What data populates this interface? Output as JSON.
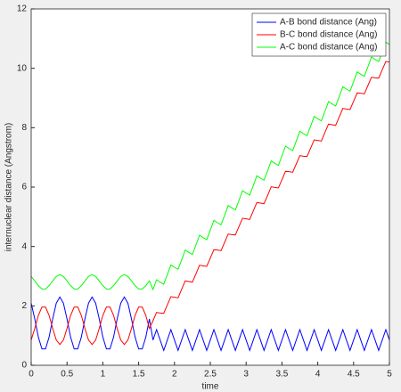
{
  "chart_data": {
    "type": "line",
    "xlabel": "time",
    "ylabel": "internuclear distance (Angstrom)",
    "xlim": [
      0,
      5
    ],
    "ylim": [
      0,
      12
    ],
    "xticks": [
      0,
      0.5,
      1,
      1.5,
      2,
      2.5,
      3,
      3.5,
      4,
      4.5,
      5
    ],
    "yticks": [
      0,
      2,
      4,
      6,
      8,
      10,
      12
    ],
    "legend": "upper right",
    "x": [
      0,
      0.05,
      0.1,
      0.15,
      0.2,
      0.25,
      0.3,
      0.35,
      0.4,
      0.45,
      0.5,
      0.55,
      0.6,
      0.65,
      0.7,
      0.75,
      0.8,
      0.85,
      0.9,
      0.95,
      1,
      1.05,
      1.1,
      1.15,
      1.2,
      1.25,
      1.3,
      1.35,
      1.4,
      1.45,
      1.5,
      1.55,
      1.6,
      1.65,
      1.7,
      1.75,
      1.8,
      1.85,
      1.9,
      1.95,
      2,
      2.05,
      2.1,
      2.15,
      2.2,
      2.25,
      2.3,
      2.35,
      2.4,
      2.45,
      2.5,
      2.55,
      2.6,
      2.65,
      2.7,
      2.75,
      2.8,
      2.85,
      2.9,
      2.95,
      3,
      3.05,
      3.1,
      3.15,
      3.2,
      3.25,
      3.3,
      3.35,
      3.4,
      3.45,
      3.5,
      3.55,
      3.6,
      3.65,
      3.7,
      3.75,
      3.8,
      3.85,
      3.9,
      3.95,
      4,
      4.05,
      4.1,
      4.15,
      4.2,
      4.25,
      4.3,
      4.35,
      4.4,
      4.45,
      4.5,
      4.55,
      4.6,
      4.65,
      4.7,
      4.75,
      4.8,
      4.85,
      4.9,
      4.95,
      5
    ],
    "series": [
      {
        "name": "A-B bond distance (Ang)",
        "color": "#0000ff",
        "values": [
          2.09,
          1.56,
          0.95,
          0.55,
          0.55,
          0.95,
          1.56,
          2.09,
          2.3,
          2.09,
          1.56,
          0.95,
          0.55,
          0.55,
          0.95,
          1.56,
          2.09,
          2.3,
          2.09,
          1.56,
          0.95,
          0.55,
          0.55,
          0.95,
          1.56,
          2.09,
          2.3,
          2.09,
          1.56,
          0.95,
          0.55,
          0.55,
          0.95,
          1.56,
          0.85,
          1.2,
          0.85,
          0.5,
          0.85,
          1.2,
          0.85,
          0.5,
          0.85,
          1.2,
          0.85,
          0.5,
          0.85,
          1.2,
          0.85,
          0.5,
          0.85,
          1.2,
          0.85,
          0.5,
          0.85,
          1.2,
          0.85,
          0.5,
          0.85,
          1.2,
          0.85,
          0.5,
          0.85,
          1.2,
          0.85,
          0.5,
          0.85,
          1.2,
          0.85,
          0.5,
          0.85,
          1.2,
          0.85,
          0.5,
          0.85,
          1.2,
          0.85,
          0.5,
          0.85,
          1.2,
          0.85,
          0.5,
          0.85,
          1.2,
          0.85,
          0.5,
          0.85,
          1.2,
          0.85,
          0.5,
          0.85,
          1.2,
          0.85,
          0.5,
          0.85,
          1.2,
          0.85,
          0.5,
          0.85,
          1.2,
          0.85
        ]
      },
      {
        "name": "B-C bond distance (Ang)",
        "color": "#ff0000",
        "values": [
          0.85,
          1.24,
          1.68,
          1.96,
          1.96,
          1.68,
          1.24,
          0.85,
          0.7,
          0.85,
          1.24,
          1.68,
          1.96,
          1.96,
          1.68,
          1.24,
          0.85,
          0.7,
          0.85,
          1.24,
          1.68,
          1.96,
          1.96,
          1.68,
          1.24,
          0.85,
          0.7,
          0.85,
          1.24,
          1.68,
          1.96,
          1.96,
          1.68,
          1.24,
          1.5,
          1.78,
          1.76,
          1.75,
          2.03,
          2.31,
          2.29,
          2.27,
          2.56,
          2.84,
          2.82,
          2.8,
          3.08,
          3.37,
          3.35,
          3.33,
          3.61,
          3.89,
          3.88,
          3.86,
          4.14,
          4.42,
          4.4,
          4.39,
          4.67,
          4.95,
          4.93,
          4.91,
          5.2,
          5.48,
          5.46,
          5.44,
          5.72,
          6.01,
          5.99,
          5.97,
          6.25,
          6.53,
          6.52,
          6.5,
          6.78,
          7.06,
          7.04,
          7.03,
          7.31,
          7.59,
          7.57,
          7.55,
          7.84,
          8.12,
          8.1,
          8.08,
          8.36,
          8.65,
          8.63,
          8.61,
          8.89,
          9.17,
          9.16,
          9.14,
          9.42,
          9.7,
          9.68,
          9.67,
          9.95,
          10.23,
          10.21
        ]
      },
      {
        "name": "A-C bond distance (Ang)",
        "color": "#00ff00",
        "values": [
          2.99,
          2.84,
          2.68,
          2.57,
          2.57,
          2.68,
          2.84,
          2.99,
          3.05,
          2.99,
          2.84,
          2.68,
          2.57,
          2.57,
          2.68,
          2.84,
          2.99,
          3.05,
          2.99,
          2.84,
          2.68,
          2.57,
          2.57,
          2.68,
          2.84,
          2.99,
          3.05,
          2.99,
          2.84,
          2.68,
          2.57,
          2.57,
          2.68,
          2.84,
          2.55,
          2.88,
          2.8,
          2.73,
          3.05,
          3.38,
          3.3,
          3.23,
          3.55,
          3.88,
          3.8,
          3.73,
          4.05,
          4.38,
          4.3,
          4.23,
          4.55,
          4.88,
          4.8,
          4.73,
          5.05,
          5.38,
          5.3,
          5.23,
          5.55,
          5.88,
          5.8,
          5.73,
          6.05,
          6.38,
          6.3,
          6.23,
          6.55,
          6.88,
          6.8,
          6.73,
          7.05,
          7.38,
          7.3,
          7.23,
          7.55,
          7.88,
          7.8,
          7.73,
          8.05,
          8.38,
          8.3,
          8.23,
          8.55,
          8.88,
          8.8,
          8.73,
          9.05,
          9.38,
          9.3,
          9.23,
          9.55,
          9.88,
          9.8,
          9.73,
          10.05,
          10.38,
          10.3,
          10.23,
          10.55,
          10.88,
          10.8
        ]
      }
    ]
  }
}
